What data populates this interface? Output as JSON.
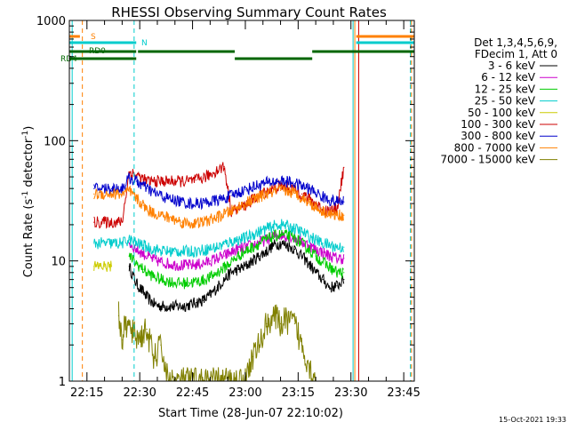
{
  "chart_data": {
    "type": "line",
    "title": "RHESSI Observing Summary Count Rates",
    "xlabel": "Start Time (28-Jun-07 22:10:02)",
    "ylabel_main": "Count Rate (s",
    "ylabel_sup1": "-1",
    "ylabel_mid": " detector",
    "ylabel_sup2": "-1",
    "ylabel_end": ")",
    "x_units": "minutes after 22:00 UT",
    "xlim": [
      10.0,
      108.0
    ],
    "ylim": [
      1,
      1000
    ],
    "yscale": "log",
    "x_ticks": [
      {
        "value": 15,
        "label": "22:15"
      },
      {
        "value": 30,
        "label": "22:30"
      },
      {
        "value": 45,
        "label": "22:45"
      },
      {
        "value": 60,
        "label": "23:00"
      },
      {
        "value": 75,
        "label": "23:15"
      },
      {
        "value": 90,
        "label": "23:30"
      },
      {
        "value": 105,
        "label": "23:45"
      }
    ],
    "y_ticks": [
      {
        "value": 1,
        "label": "1"
      },
      {
        "value": 10,
        "label": "10"
      },
      {
        "value": 100,
        "label": "100"
      },
      {
        "value": 1000,
        "label": "1000"
      }
    ],
    "legend": {
      "position": "right",
      "header": [
        "Det 1,3,4,5,6,9,",
        "FDecim 1, Att 0"
      ]
    },
    "footer_timestamp": "15-Oct-2021 19:33",
    "series": [
      {
        "name": "3 - 6 keV",
        "color": "#000000",
        "x": [
          27,
          29,
          31,
          32,
          34,
          36,
          38,
          40,
          42,
          44,
          46,
          48,
          50,
          52,
          54,
          56,
          58,
          60,
          62,
          64,
          66,
          68,
          70,
          72,
          74,
          76,
          78,
          80,
          82,
          84,
          86,
          88
        ],
        "y": [
          9,
          6.5,
          5.5,
          5,
          4.4,
          4.2,
          4.2,
          4.2,
          4.2,
          4.3,
          4.5,
          4.7,
          5.2,
          6,
          7,
          8,
          8.5,
          9,
          10,
          11,
          12,
          13.5,
          14,
          13.5,
          12.5,
          11,
          9.5,
          8,
          7,
          6,
          6.2,
          7
        ]
      },
      {
        "name": "6 - 12 keV",
        "color": "#cc00cc",
        "x": [
          27,
          29,
          31,
          32,
          34,
          36,
          38,
          40,
          42,
          44,
          46,
          48,
          50,
          52,
          54,
          56,
          58,
          60,
          62,
          64,
          66,
          68,
          70,
          72,
          74,
          76,
          78,
          80,
          82,
          84,
          86,
          88
        ],
        "y": [
          14,
          12.5,
          11.5,
          11,
          10.2,
          9.8,
          9.5,
          9.3,
          9.2,
          9.2,
          9.3,
          9.5,
          10,
          10.5,
          11,
          11.8,
          12.5,
          13,
          13.5,
          14.2,
          15,
          16,
          16.5,
          16.2,
          15.5,
          14.5,
          13.5,
          12.5,
          11.8,
          11,
          10.5,
          10.5
        ]
      },
      {
        "name": "12 - 25 keV",
        "color": "#00cc00",
        "x": [
          27,
          29,
          31,
          32,
          34,
          36,
          38,
          40,
          42,
          44,
          46,
          48,
          50,
          52,
          54,
          56,
          58,
          60,
          62,
          64,
          66,
          68,
          70,
          72,
          74,
          76,
          78,
          80,
          82,
          84,
          86,
          88
        ],
        "y": [
          11,
          9.5,
          8.5,
          8,
          7.4,
          7,
          6.8,
          6.6,
          6.5,
          6.6,
          6.7,
          6.9,
          7.3,
          8,
          8.8,
          9.8,
          11,
          12,
          13,
          14,
          15,
          16,
          16.5,
          16.2,
          15.5,
          14,
          12.5,
          11,
          9.8,
          8.8,
          8,
          8
        ]
      },
      {
        "name": "25 - 50 keV",
        "color": "#00cccc",
        "x": [
          17,
          22,
          25,
          27,
          29,
          31,
          32,
          34,
          36,
          38,
          40,
          42,
          44,
          46,
          48,
          50,
          52,
          54,
          56,
          58,
          60,
          62,
          64,
          66,
          68,
          70,
          72,
          74,
          76,
          78,
          80,
          82,
          84,
          86,
          88
        ],
        "y": [
          14,
          14,
          14,
          15,
          14,
          13.5,
          13,
          12.5,
          12.2,
          12,
          12,
          12,
          12,
          12.1,
          12.3,
          12.7,
          13,
          13.8,
          14.5,
          15,
          15.5,
          16.5,
          17.5,
          18.5,
          19.5,
          20,
          19.5,
          18.5,
          17.5,
          16,
          15,
          14,
          13.5,
          13,
          13
        ]
      },
      {
        "name": "50 - 100 keV",
        "color": "#cccc00",
        "x": [
          17,
          20,
          22
        ],
        "y": [
          9,
          9,
          9
        ]
      },
      {
        "name": "100 - 300 keV",
        "color": "#cc0000",
        "x": [
          17,
          22,
          25,
          27,
          29,
          31,
          32,
          34,
          36,
          38,
          40,
          42,
          44,
          46,
          48,
          50,
          52,
          54,
          56,
          58,
          60,
          62,
          64,
          66,
          68,
          70,
          72,
          74,
          76,
          78,
          80,
          82,
          84,
          86,
          88
        ],
        "y": [
          21,
          21,
          21,
          55,
          52,
          48,
          46,
          46,
          46,
          46,
          46,
          46,
          46,
          47,
          49,
          52,
          57,
          61,
          26,
          27,
          29,
          32,
          35,
          38,
          40,
          42,
          41,
          39,
          36,
          33,
          30,
          27,
          26,
          27,
          60
        ]
      },
      {
        "name": "300 - 800 keV",
        "color": "#0000cc",
        "x": [
          17,
          22,
          25,
          27,
          29,
          31,
          32,
          34,
          36,
          38,
          40,
          42,
          44,
          46,
          48,
          50,
          52,
          54,
          56,
          58,
          60,
          62,
          64,
          66,
          68,
          70,
          72,
          74,
          76,
          78,
          80,
          82,
          84,
          86,
          88
        ],
        "y": [
          40,
          40,
          40,
          49,
          46,
          42,
          40,
          37,
          35,
          33,
          32,
          31,
          30,
          30,
          30.5,
          31,
          32,
          33,
          35,
          37,
          39,
          41,
          43,
          44.5,
          45.5,
          46,
          45.5,
          44,
          42,
          40,
          37,
          34,
          32,
          31,
          31
        ]
      },
      {
        "name": "800 - 7000 keV",
        "color": "#ff8000",
        "x": [
          17,
          22,
          25,
          27,
          29,
          31,
          32,
          34,
          36,
          38,
          40,
          42,
          44,
          46,
          48,
          50,
          52,
          54,
          56,
          58,
          60,
          62,
          64,
          66,
          68,
          70,
          72,
          74,
          76,
          78,
          80,
          82,
          84,
          86,
          88
        ],
        "y": [
          36,
          36,
          36,
          38,
          33,
          29,
          27,
          25,
          24,
          23,
          22,
          21,
          20.5,
          20.5,
          21,
          22,
          23,
          24.5,
          26,
          28,
          30,
          32,
          34,
          36,
          37.5,
          38.5,
          38,
          36.5,
          34,
          31,
          28,
          26,
          24.5,
          24,
          24
        ]
      },
      {
        "name": "7000 - 15000 keV",
        "color": "#808000",
        "x": [
          24,
          25,
          26,
          28,
          30,
          32,
          34,
          36,
          38,
          40,
          42,
          44,
          46,
          48,
          50,
          52,
          54,
          56,
          58,
          60,
          62,
          64,
          66,
          68,
          70,
          72,
          74,
          76,
          78,
          80
        ],
        "y": [
          3.5,
          2.2,
          3,
          2.5,
          2.3,
          2.7,
          1.5,
          2,
          1,
          1,
          1,
          1,
          1,
          1,
          1,
          1,
          1,
          1,
          1,
          1,
          1.6,
          2,
          3,
          3.5,
          3,
          3.2,
          3,
          2,
          1.4,
          1
        ]
      }
    ],
    "state_bars": [
      {
        "label": "S",
        "label_color": "#ff8000",
        "color": "#ff8000",
        "level": "top",
        "segments": [
          [
            10.0,
            13.0
          ],
          [
            91.5,
            108.0
          ]
        ]
      },
      {
        "label": "N",
        "label_color": "#00cccc",
        "color": "#00cccc",
        "level": "second",
        "segments": [
          [
            10.0,
            29.0
          ],
          [
            91.5,
            108.0
          ]
        ]
      },
      {
        "label": "RD0",
        "label_color": "#006600",
        "color": "#006600",
        "level": "third",
        "segments": [
          [
            10.0,
            29.0
          ],
          [
            29.5,
            57.0
          ],
          [
            79.0,
            108.0
          ]
        ]
      },
      {
        "label": "RD4",
        "label_color": "#006600",
        "color": "#006600",
        "level": "fourth",
        "segments": [
          [
            10.0,
            29.0
          ],
          [
            57.0,
            79.0
          ]
        ]
      }
    ],
    "vertical_markers": [
      {
        "x": 10.8,
        "color": "#00cccc",
        "style": "solid"
      },
      {
        "x": 13.7,
        "color": "#ff8000",
        "style": "dash"
      },
      {
        "x": 28.4,
        "color": "#00cccc",
        "style": "dash"
      },
      {
        "x": 90.6,
        "color": "#00cccc",
        "style": "solid"
      },
      {
        "x": 91.1,
        "color": "#ff8000",
        "style": "solid"
      },
      {
        "x": 92.2,
        "color": "#cc0000",
        "style": "solid"
      },
      {
        "x": 106.9,
        "color": "#00cccc",
        "style": "dash"
      },
      {
        "x": 107.2,
        "color": "#ff8000",
        "style": "dash"
      }
    ]
  }
}
